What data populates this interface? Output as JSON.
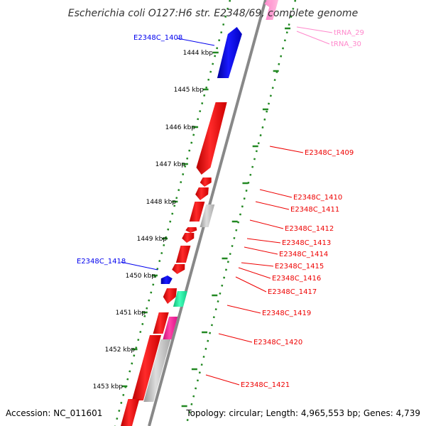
{
  "title": "Escherichia coli O127:H6 str. E2348/69, complete genome",
  "accession": "Accession: NC_011601",
  "topology": "Topology: circular; Length: 4,965,553 bp; Genes: 4,739",
  "colors": {
    "forward": "#0000ee",
    "reverse": "#ee0000",
    "pseudo": "#bbbbbb",
    "trna": "#ff88cc",
    "tick": "#228822",
    "backbone": "#888888",
    "misc_teal": "#22ee99",
    "misc_pink": "#ff2299"
  },
  "kbp_ticks": [
    "1444 kbp",
    "1445 kbp",
    "1446 kbp",
    "1447 kbp",
    "1448 kbp",
    "1449 kbp",
    "1450 kbp",
    "1451 kbp",
    "1452 kbp",
    "1453 kbp"
  ],
  "labels": [
    {
      "text": "E2348C_1408",
      "strand": "forward"
    },
    {
      "text": "tRNA_29",
      "strand": "trna"
    },
    {
      "text": "tRNA_30",
      "strand": "trna"
    },
    {
      "text": "E2348C_1409",
      "strand": "reverse"
    },
    {
      "text": "E2348C_1410",
      "strand": "reverse"
    },
    {
      "text": "E2348C_1411",
      "strand": "reverse"
    },
    {
      "text": "E2348C_1412",
      "strand": "reverse"
    },
    {
      "text": "E2348C_1413",
      "strand": "reverse"
    },
    {
      "text": "E2348C_1414",
      "strand": "reverse"
    },
    {
      "text": "E2348C_1415",
      "strand": "reverse"
    },
    {
      "text": "E2348C_1416",
      "strand": "reverse"
    },
    {
      "text": "E2348C_1417",
      "strand": "reverse"
    },
    {
      "text": "E2348C_1418",
      "strand": "forward"
    },
    {
      "text": "E2348C_1419",
      "strand": "reverse"
    },
    {
      "text": "E2348C_1420",
      "strand": "reverse"
    },
    {
      "text": "E2348C_1421",
      "strand": "reverse"
    }
  ]
}
